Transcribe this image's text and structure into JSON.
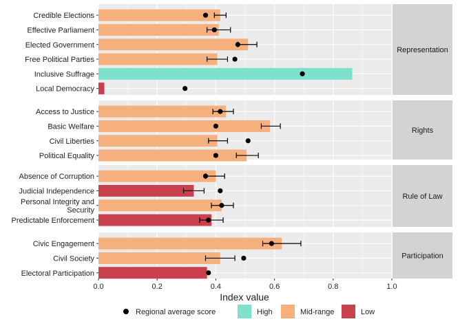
{
  "chart_data": {
    "type": "bar",
    "orientation": "horizontal",
    "xlabel": "Index value",
    "xlim": [
      0,
      1.0
    ],
    "x_ticks": [
      "0.0",
      "0.2",
      "0.4",
      "0.6",
      "0.8",
      "1.0"
    ],
    "x_tick_values": [
      0,
      0.2,
      0.4,
      0.6,
      0.8,
      1.0
    ],
    "grid": true,
    "legend": {
      "placement": "bottom",
      "point_label": "Regional average score",
      "entries": [
        {
          "name": "High",
          "color": "#7fe0cb"
        },
        {
          "name": "Mid-range",
          "color": "#f6b07d"
        },
        {
          "name": "Low",
          "color": "#c9404f"
        }
      ]
    },
    "colors": {
      "High": "#7fe0cb",
      "Mid-range": "#f6b07d",
      "Low": "#c9404f",
      "panel": "#ebebeb",
      "strip": "#d3d3d3",
      "grid": "#ffffff"
    },
    "panels": [
      {
        "name": "Representation",
        "items": [
          {
            "label": "Credible Elections",
            "value": 0.415,
            "level": "Mid-range",
            "avg": 0.365,
            "ci": [
              0.395,
              0.435
            ]
          },
          {
            "label": "Effective Parliament",
            "value": 0.41,
            "level": "Mid-range",
            "avg": 0.395,
            "ci": [
              0.37,
              0.45
            ]
          },
          {
            "label": "Elected Government",
            "value": 0.51,
            "level": "Mid-range",
            "avg": 0.475,
            "ci": [
              0.475,
              0.54
            ]
          },
          {
            "label": "Free Political Parties",
            "value": 0.405,
            "level": "Mid-range",
            "avg": 0.465,
            "ci": [
              0.37,
              0.44
            ]
          },
          {
            "label": "Inclusive Suffrage",
            "value": 0.865,
            "level": "High",
            "avg": 0.695,
            "ci": null
          },
          {
            "label": "Local Democracy",
            "value": 0.02,
            "level": "Low",
            "avg": 0.295,
            "ci": null
          }
        ]
      },
      {
        "name": "Rights",
        "items": [
          {
            "label": "Access to Justice",
            "value": 0.435,
            "level": "Mid-range",
            "avg": 0.415,
            "ci": [
              0.39,
              0.46
            ]
          },
          {
            "label": "Basic Welfare",
            "value": 0.585,
            "level": "Mid-range",
            "avg": 0.4,
            "ci": [
              0.555,
              0.62
            ]
          },
          {
            "label": "Civil Liberties",
            "value": 0.405,
            "level": "Mid-range",
            "avg": 0.51,
            "ci": [
              0.375,
              0.44
            ]
          },
          {
            "label": "Political Equality",
            "value": 0.505,
            "level": "Mid-range",
            "avg": 0.4,
            "ci": [
              0.47,
              0.545
            ]
          }
        ]
      },
      {
        "name": "Rule of Law",
        "items": [
          {
            "label": "Absence of Corruption",
            "value": 0.4,
            "level": "Mid-range",
            "avg": 0.365,
            "ci": [
              0.365,
              0.43
            ]
          },
          {
            "label": "Judicial Independence",
            "value": 0.325,
            "level": "Low",
            "avg": 0.415,
            "ci": [
              0.29,
              0.36
            ]
          },
          {
            "label": "Personal Integrity and\nSecurity",
            "value": 0.42,
            "level": "Mid-range",
            "avg": 0.42,
            "ci": [
              0.385,
              0.46
            ]
          },
          {
            "label": "Predictable Enforcement",
            "value": 0.385,
            "level": "Low",
            "avg": 0.375,
            "ci": [
              0.345,
              0.425
            ]
          }
        ]
      },
      {
        "name": "Participation",
        "items": [
          {
            "label": "Civic Engagement",
            "value": 0.625,
            "level": "Mid-range",
            "avg": 0.59,
            "ci": [
              0.56,
              0.69
            ]
          },
          {
            "label": "Civil Society",
            "value": 0.415,
            "level": "Mid-range",
            "avg": 0.495,
            "ci": [
              0.365,
              0.465
            ]
          },
          {
            "label": "Electoral Participation",
            "value": 0.37,
            "level": "Low",
            "avg": 0.375,
            "ci": null
          }
        ]
      }
    ]
  }
}
